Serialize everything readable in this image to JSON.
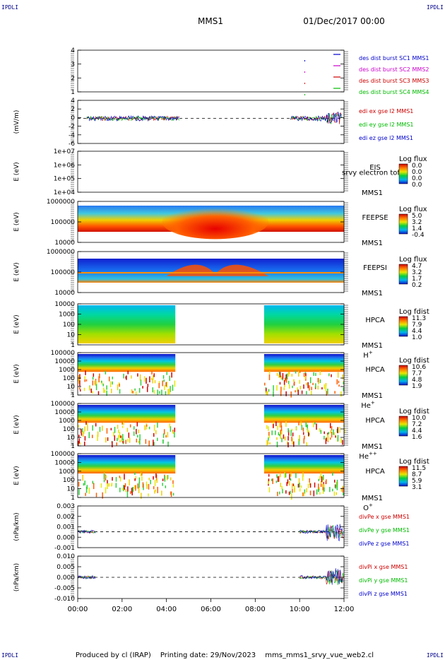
{
  "header": {
    "corner_label": "IPDLI",
    "title": "MMS1",
    "date": "01/Dec/2017 00:00"
  },
  "footer": {
    "produced_by": "Produced by cl (IRAP)",
    "printing_date": "Printing date: 29/Nov/2023",
    "script": "mms_mms1_srvy_vue_web2.cl"
  },
  "colors": {
    "mms1": "#0000cc",
    "mms2": "#cc00cc",
    "mms3": "#cc0000",
    "mms4": "#00bb00",
    "zero_line": "#000000"
  },
  "chart_data": {
    "type": "heatmap",
    "x_axis": {
      "ticks": [
        "00:00",
        "02:00",
        "04:00",
        "06:00",
        "08:00",
        "10:00",
        "12:00"
      ],
      "range_hours": [
        0,
        12
      ]
    },
    "panels": [
      {
        "id": "burst",
        "type": "line",
        "ylabel": "",
        "yticks": [
          "4",
          "3",
          "2",
          "1"
        ],
        "legend": [
          {
            "text": "des dist burst SC1 MMS1",
            "color": "#0000cc"
          },
          {
            "text": "des dist burst SC2 MMS2",
            "color": "#cc00cc"
          },
          {
            "text": "des dist burst SC3 MMS3",
            "color": "#cc0000"
          },
          {
            "text": "des dist burst SC4 MMS4",
            "color": "#00bb00"
          }
        ]
      },
      {
        "id": "edi",
        "type": "line",
        "ylabel": "(mV/m)",
        "yticks": [
          "4",
          "2",
          "0",
          "-2",
          "-4",
          "-6"
        ],
        "legend": [
          {
            "text": "edi ex gse l2 MMS1",
            "color": "#cc0000"
          },
          {
            "text": "edi ey gse l2 MMS1",
            "color": "#00bb00"
          },
          {
            "text": "edi ez gse l2 MMS1",
            "color": "#0000cc"
          }
        ],
        "data_intervals_hours": [
          [
            0.4,
            4.6
          ],
          [
            9.6,
            11.9
          ]
        ]
      },
      {
        "id": "eis",
        "type": "heatmap",
        "ylabel": "E (eV)",
        "yticks": [
          "1e+07",
          "1e+06",
          "1e+05",
          "1e+04"
        ],
        "instrument": [
          "EIS",
          "MMS1"
        ],
        "overlay": "srvy electron tof",
        "cbar_title": "Log flux",
        "cbar_ticks": [
          "0.0",
          "0.0",
          "0.0",
          "0.0"
        ],
        "data_intervals_hours": []
      },
      {
        "id": "feepse",
        "type": "heatmap",
        "ylabel": "E (eV)",
        "yticks": [
          "1000000",
          "100000",
          "10000"
        ],
        "instrument": [
          "FEEPSE",
          "MMS1"
        ],
        "cbar_title": "Log flux",
        "cbar_ticks": [
          "5.0",
          "3.2",
          "1.4",
          "-0.4"
        ],
        "data_intervals_hours": [
          [
            0,
            12
          ]
        ]
      },
      {
        "id": "feepsi",
        "type": "heatmap",
        "ylabel": "E (eV)",
        "yticks": [
          "1000000",
          "100000",
          "10000"
        ],
        "instrument": [
          "FEEPSI",
          "MMS1"
        ],
        "cbar_title": "Log flux",
        "cbar_ticks": [
          "4.7",
          "3.2",
          "1.7",
          "0.2"
        ],
        "data_intervals_hours": [
          [
            0,
            12
          ]
        ]
      },
      {
        "id": "hpca_h",
        "type": "heatmap",
        "ylabel": "E (eV)",
        "yticks": [
          "10000",
          "1000",
          "100",
          "10",
          "1"
        ],
        "instrument": [
          "HPCA",
          "MMS1"
        ],
        "species": "H",
        "charge": "+",
        "cbar_title": "Log fdist",
        "cbar_ticks": [
          "11.3",
          "7.9",
          "4.4",
          "1.0"
        ],
        "data_intervals_hours": [
          [
            0,
            4.4
          ],
          [
            8.4,
            12
          ]
        ]
      },
      {
        "id": "hpca_he1",
        "type": "heatmap",
        "ylabel": "E (eV)",
        "yticks": [
          "100000",
          "10000",
          "1000",
          "100",
          "10",
          "1"
        ],
        "instrument": [
          "HPCA",
          "MMS1"
        ],
        "species": "He",
        "charge": "+",
        "cbar_title": "Log fdist",
        "cbar_ticks": [
          "10.6",
          "7.7",
          "4.8",
          "1.9"
        ],
        "data_intervals_hours": [
          [
            0,
            4.4
          ],
          [
            8.4,
            12
          ]
        ]
      },
      {
        "id": "hpca_he2",
        "type": "heatmap",
        "ylabel": "E (eV)",
        "yticks": [
          "100000",
          "10000",
          "1000",
          "100",
          "10",
          "1"
        ],
        "instrument": [
          "HPCA",
          "MMS1"
        ],
        "species": "He",
        "charge": "++",
        "cbar_title": "Log fdist",
        "cbar_ticks": [
          "10.0",
          "7.2",
          "4.4",
          "1.6"
        ],
        "data_intervals_hours": [
          [
            0,
            4.4
          ],
          [
            8.4,
            12
          ]
        ]
      },
      {
        "id": "hpca_o",
        "type": "heatmap",
        "ylabel": "E (eV)",
        "yticks": [
          "100000",
          "10000",
          "1000",
          "100",
          "10",
          "1"
        ],
        "instrument": [
          "HPCA",
          "MMS1"
        ],
        "species": "O",
        "charge": "+",
        "cbar_title": "Log fdist",
        "cbar_ticks": [
          "11.5",
          "8.7",
          "5.9",
          "3.1"
        ],
        "data_intervals_hours": [
          [
            0,
            4.4
          ],
          [
            8.4,
            12
          ]
        ]
      },
      {
        "id": "divpe",
        "type": "line",
        "ylabel": "(nPa/km)",
        "yticks": [
          "0.003",
          "0.002",
          "0.001",
          "0.000",
          "-0.001"
        ],
        "legend": [
          {
            "text": "divPe x gse MMS1",
            "color": "#cc0000"
          },
          {
            "text": "divPe y gse MMS1",
            "color": "#00bb00"
          },
          {
            "text": "divPe z gse MMS1",
            "color": "#0000cc"
          }
        ],
        "data_intervals_hours": [
          [
            0.0,
            0.8
          ],
          [
            10.0,
            12.0
          ]
        ]
      },
      {
        "id": "divpi",
        "type": "line",
        "ylabel": "(nPa/km)",
        "yticks": [
          "0.010",
          "0.005",
          "0.000",
          "-0.005",
          "-0.010"
        ],
        "legend": [
          {
            "text": "divPi x gse MMS1",
            "color": "#cc0000"
          },
          {
            "text": "divPi y gse MMS1",
            "color": "#00bb00"
          },
          {
            "text": "divPi z gse MMS1",
            "color": "#0000cc"
          }
        ],
        "data_intervals_hours": [
          [
            0.0,
            0.8
          ],
          [
            10.0,
            12.0
          ]
        ]
      }
    ]
  }
}
